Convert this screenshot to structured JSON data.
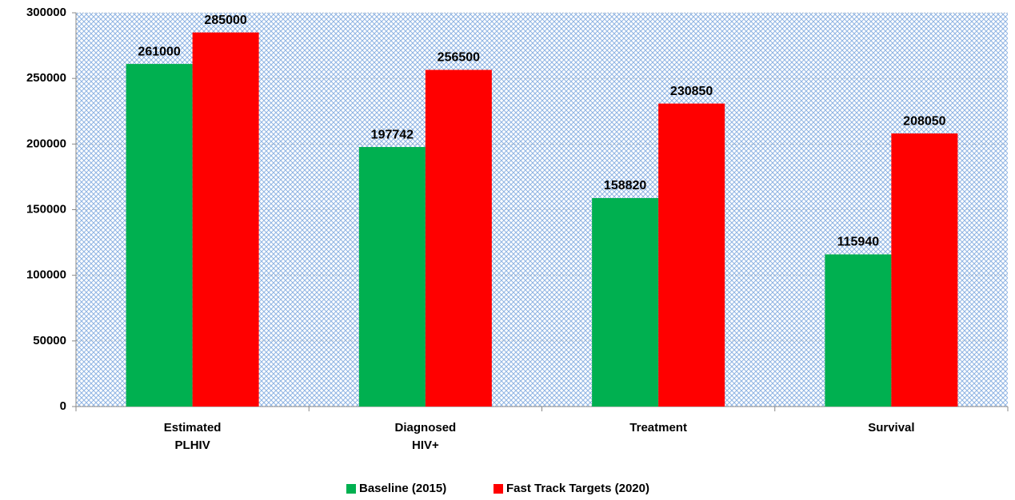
{
  "chart_data": {
    "type": "bar",
    "categories": [
      "Estimated PLHIV",
      "Diagnosed HIV+",
      "Treatment",
      "Survival"
    ],
    "series": [
      {
        "name": "Baseline (2015)",
        "color": "#00b050",
        "values": [
          261000,
          197742,
          158820,
          115940
        ]
      },
      {
        "name": "Fast Track Targets (2020)",
        "color": "#ff0000",
        "values": [
          285000,
          256500,
          230850,
          208050
        ]
      }
    ],
    "ylim": [
      0,
      300000
    ],
    "yticks": [
      0,
      50000,
      100000,
      150000,
      200000,
      250000,
      300000
    ],
    "grid": true,
    "legend": "bottom"
  }
}
